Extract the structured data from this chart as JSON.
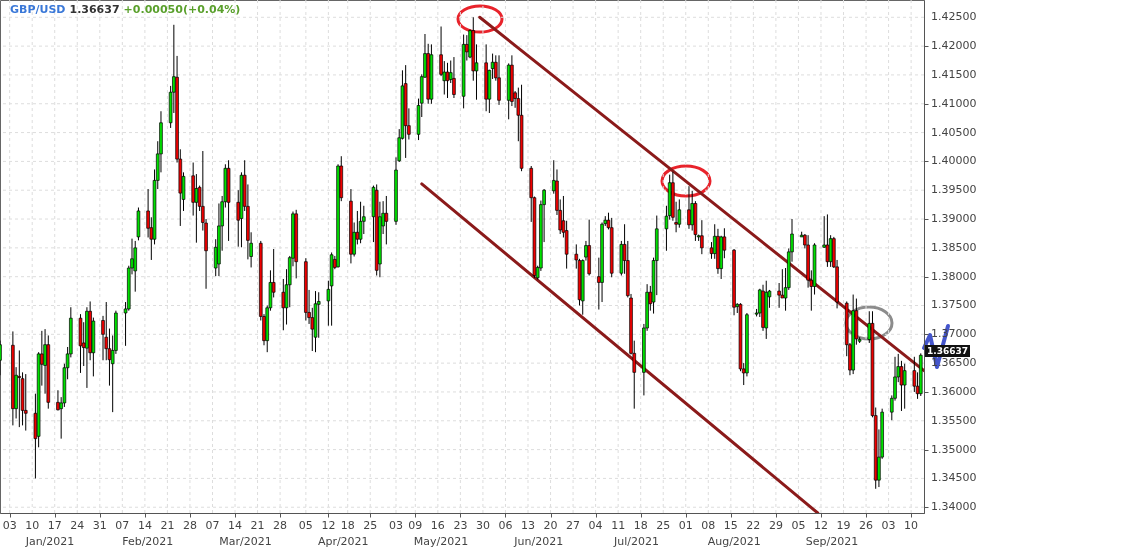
{
  "chart_data": {
    "type": "candlestick",
    "title": "GBP/USD",
    "subtitle": "1.36637",
    "annotations": [
      "+0.00050(+0.04%)",
      "Jan/2021",
      "Feb/2021",
      "Mar/2021",
      "Apr/2021",
      "May/2021",
      "Jun/2021",
      "Jul/2021",
      "Aug/2021",
      "Sep/2021",
      {
        "text": "1.36637",
        "x": "2021-10-13",
        "y": 1.36637
      }
    ],
    "x": [
      "2020-12-31",
      "2021-01-04",
      "2021-01-05",
      "2021-01-06",
      "2021-01-07",
      "2021-01-08",
      "2021-01-11",
      "2021-01-12",
      "2021-01-13",
      "2021-01-14",
      "2021-01-15",
      "2021-01-18",
      "2021-01-19",
      "2021-01-20",
      "2021-01-21",
      "2021-01-22",
      "2021-01-25",
      "2021-01-26",
      "2021-01-27",
      "2021-01-28",
      "2021-01-29",
      "2021-02-01",
      "2021-02-02",
      "2021-02-03",
      "2021-02-04",
      "2021-02-05",
      "2021-02-08",
      "2021-02-09",
      "2021-02-10",
      "2021-02-11",
      "2021-02-12",
      "2021-02-15",
      "2021-02-16",
      "2021-02-17",
      "2021-02-18",
      "2021-02-19",
      "2021-02-22",
      "2021-02-23",
      "2021-02-24",
      "2021-02-25",
      "2021-02-26",
      "2021-03-01",
      "2021-03-02",
      "2021-03-03",
      "2021-03-04",
      "2021-03-05",
      "2021-03-08",
      "2021-03-09",
      "2021-03-10",
      "2021-03-11",
      "2021-03-12",
      "2021-03-15",
      "2021-03-16",
      "2021-03-17",
      "2021-03-18",
      "2021-03-19",
      "2021-03-22",
      "2021-03-23",
      "2021-03-24",
      "2021-03-25",
      "2021-03-26",
      "2021-03-29",
      "2021-03-30",
      "2021-03-31",
      "2021-04-01",
      "2021-04-02",
      "2021-04-05",
      "2021-04-06",
      "2021-04-07",
      "2021-04-08",
      "2021-04-09",
      "2021-04-12",
      "2021-04-13",
      "2021-04-14",
      "2021-04-15",
      "2021-04-16",
      "2021-04-19",
      "2021-04-20",
      "2021-04-21",
      "2021-04-22",
      "2021-04-23",
      "2021-04-26",
      "2021-04-27",
      "2021-04-28",
      "2021-04-29",
      "2021-04-30",
      "2021-05-03",
      "2021-05-04",
      "2021-05-05",
      "2021-05-06",
      "2021-05-07",
      "2021-05-10",
      "2021-05-11",
      "2021-05-12",
      "2021-05-13",
      "2021-05-14",
      "2021-05-17",
      "2021-05-18",
      "2021-05-19",
      "2021-05-20",
      "2021-05-21",
      "2021-05-24",
      "2021-05-25",
      "2021-05-26",
      "2021-05-27",
      "2021-05-28",
      "2021-05-31",
      "2021-06-01",
      "2021-06-02",
      "2021-06-03",
      "2021-06-04",
      "2021-06-07",
      "2021-06-08",
      "2021-06-09",
      "2021-06-10",
      "2021-06-11",
      "2021-06-14",
      "2021-06-15",
      "2021-06-16",
      "2021-06-17",
      "2021-06-18",
      "2021-06-21",
      "2021-06-22",
      "2021-06-23",
      "2021-06-24",
      "2021-06-25",
      "2021-06-28",
      "2021-06-29",
      "2021-06-30",
      "2021-07-01",
      "2021-07-02",
      "2021-07-05",
      "2021-07-06",
      "2021-07-07",
      "2021-07-08",
      "2021-07-09",
      "2021-07-12",
      "2021-07-13",
      "2021-07-14",
      "2021-07-15",
      "2021-07-16",
      "2021-07-19",
      "2021-07-20",
      "2021-07-21",
      "2021-07-22",
      "2021-07-23",
      "2021-07-26",
      "2021-07-27",
      "2021-07-28",
      "2021-07-29",
      "2021-07-30",
      "2021-08-02",
      "2021-08-03",
      "2021-08-04",
      "2021-08-05",
      "2021-08-06",
      "2021-08-09",
      "2021-08-10",
      "2021-08-11",
      "2021-08-12",
      "2021-08-13",
      "2021-08-16",
      "2021-08-17",
      "2021-08-18",
      "2021-08-19",
      "2021-08-20",
      "2021-08-23",
      "2021-08-24",
      "2021-08-25",
      "2021-08-26",
      "2021-08-27",
      "2021-08-30",
      "2021-08-31",
      "2021-09-01",
      "2021-09-02",
      "2021-09-03",
      "2021-09-06",
      "2021-09-07",
      "2021-09-08",
      "2021-09-09",
      "2021-09-10",
      "2021-09-13",
      "2021-09-14",
      "2021-09-15",
      "2021-09-16",
      "2021-09-17",
      "2021-09-20",
      "2021-09-21",
      "2021-09-22",
      "2021-09-23",
      "2021-09-24",
      "2021-09-27",
      "2021-09-28",
      "2021-09-29",
      "2021-09-30",
      "2021-10-01",
      "2021-10-04",
      "2021-10-05",
      "2021-10-06",
      "2021-10-07",
      "2021-10-08",
      "2021-10-11",
      "2021-10-12",
      "2021-10-13"
    ],
    "ohlc": [
      [
        1.3655,
        1.3689,
        1.3629,
        1.3682
      ],
      [
        1.3681,
        1.3705,
        1.3542,
        1.3571
      ],
      [
        1.3571,
        1.3643,
        1.3554,
        1.3629
      ],
      [
        1.3627,
        1.3672,
        1.3539,
        1.3625
      ],
      [
        1.3623,
        1.3634,
        1.3542,
        1.3568
      ],
      [
        1.3568,
        1.3631,
        1.3533,
        1.3563
      ],
      [
        1.3563,
        1.3597,
        1.345,
        1.3519
      ],
      [
        1.3523,
        1.3669,
        1.3504,
        1.3666
      ],
      [
        1.3666,
        1.3706,
        1.3611,
        1.3648
      ],
      [
        1.3646,
        1.3709,
        1.3597,
        1.3682
      ],
      [
        1.3682,
        1.3698,
        1.3571,
        1.3582
      ],
      [
        1.3582,
        1.3603,
        1.3568,
        1.3569
      ],
      [
        1.3571,
        1.3591,
        1.3519,
        1.3581
      ],
      [
        1.3581,
        1.3649,
        1.3574,
        1.3642
      ],
      [
        1.3642,
        1.3678,
        1.3622,
        1.3666
      ],
      [
        1.3666,
        1.3747,
        1.366,
        1.3728
      ],
      [
        1.3728,
        1.3735,
        1.3633,
        1.368
      ],
      [
        1.3685,
        1.3721,
        1.3645,
        1.3677
      ],
      [
        1.3676,
        1.3747,
        1.3607,
        1.374
      ],
      [
        1.374,
        1.3757,
        1.3655,
        1.3668
      ],
      [
        1.3668,
        1.3729,
        1.3627,
        1.3723
      ],
      [
        1.3724,
        1.3732,
        1.3655,
        1.37
      ],
      [
        1.3695,
        1.3756,
        1.3655,
        1.3675
      ],
      [
        1.3675,
        1.371,
        1.3611,
        1.3656
      ],
      [
        1.3649,
        1.3698,
        1.3565,
        1.3672
      ],
      [
        1.3672,
        1.3741,
        1.3666,
        1.3737
      ],
      [
        1.3737,
        1.3756,
        1.368,
        1.3744
      ],
      [
        1.3744,
        1.3819,
        1.3741,
        1.3815
      ],
      [
        1.3815,
        1.3866,
        1.3804,
        1.3831
      ],
      [
        1.381,
        1.3862,
        1.3774,
        1.385
      ],
      [
        1.3869,
        1.392,
        1.3863,
        1.3914
      ],
      [
        1.3914,
        1.3952,
        1.3868,
        1.3884
      ],
      [
        1.3885,
        1.3903,
        1.3829,
        1.3865
      ],
      [
        1.3865,
        1.3986,
        1.3856,
        1.3967
      ],
      [
        1.3967,
        1.4035,
        1.3952,
        1.4013
      ],
      [
        1.4013,
        1.4087,
        1.3981,
        1.4067
      ],
      [
        1.4067,
        1.4131,
        1.4058,
        1.412
      ],
      [
        1.412,
        1.4237,
        1.4084,
        1.4147
      ],
      [
        1.4146,
        1.4183,
        1.3998,
        1.4004
      ],
      [
        1.4004,
        1.4021,
        1.3888,
        1.3945
      ],
      [
        1.3934,
        1.3981,
        1.3914,
        1.3974
      ],
      [
        1.3975,
        1.3998,
        1.3906,
        1.3929
      ],
      [
        1.3929,
        1.3978,
        1.3859,
        1.3953
      ],
      [
        1.3955,
        1.3958,
        1.3914,
        1.3922
      ],
      [
        1.3922,
        1.4018,
        1.388,
        1.3894
      ],
      [
        1.3893,
        1.39,
        1.3779,
        1.3845
      ],
      [
        1.3815,
        1.3865,
        1.3801,
        1.3851
      ],
      [
        1.3822,
        1.3927,
        1.3801,
        1.3888
      ],
      [
        1.3888,
        1.394,
        1.3845,
        1.393
      ],
      [
        1.393,
        1.3995,
        1.392,
        1.3988
      ],
      [
        1.3988,
        1.4002,
        1.3862,
        1.3929
      ],
      [
        1.3929,
        1.395,
        1.3852,
        1.3898
      ],
      [
        1.3901,
        1.3981,
        1.3851,
        1.3976
      ],
      [
        1.3976,
        1.4002,
        1.3914,
        1.3922
      ],
      [
        1.3922,
        1.396,
        1.383,
        1.3863
      ],
      [
        1.3835,
        1.3877,
        1.3816,
        1.3858
      ],
      [
        1.3858,
        1.3862,
        1.3724,
        1.3731
      ],
      [
        1.3731,
        1.3735,
        1.3681,
        1.3689
      ],
      [
        1.3689,
        1.375,
        1.3669,
        1.3746
      ],
      [
        1.3746,
        1.3811,
        1.3741,
        1.379
      ],
      [
        1.379,
        1.3848,
        1.3764,
        1.3773
      ],
      [
        1.3773,
        1.3796,
        1.3707,
        1.3746
      ],
      [
        1.3746,
        1.3813,
        1.3717,
        1.3786
      ],
      [
        1.3786,
        1.3836,
        1.3747,
        1.3833
      ],
      [
        1.3832,
        1.3913,
        1.3818,
        1.3909
      ],
      [
        1.3909,
        1.3916,
        1.3797,
        1.3826
      ],
      [
        1.3826,
        1.3832,
        1.3724,
        1.3738
      ],
      [
        1.3738,
        1.3777,
        1.3718,
        1.3729
      ],
      [
        1.3729,
        1.3746,
        1.3671,
        1.3709
      ],
      [
        1.3695,
        1.3775,
        1.3669,
        1.3753
      ],
      [
        1.3752,
        1.3773,
        1.3694,
        1.3757
      ],
      [
        1.3758,
        1.3793,
        1.3715,
        1.3778
      ],
      [
        1.3784,
        1.3842,
        1.3715,
        1.3838
      ],
      [
        1.383,
        1.3836,
        1.3813,
        1.3816
      ],
      [
        1.3817,
        1.3995,
        1.3816,
        1.3992
      ],
      [
        1.3992,
        1.4009,
        1.3931,
        1.3937
      ],
      [
        1.3931,
        1.3952,
        1.3823,
        1.3839
      ],
      [
        1.3839,
        1.3894,
        1.3835,
        1.3877
      ],
      [
        1.3877,
        1.3914,
        1.3856,
        1.3865
      ],
      [
        1.3865,
        1.393,
        1.3858,
        1.3896
      ],
      [
        1.3896,
        1.3923,
        1.3874,
        1.3904
      ],
      [
        1.3904,
        1.3958,
        1.386,
        1.3955
      ],
      [
        1.395,
        1.396,
        1.3802,
        1.3811
      ],
      [
        1.3822,
        1.393,
        1.3799,
        1.3904
      ],
      [
        1.3888,
        1.3931,
        1.3874,
        1.391
      ],
      [
        1.391,
        1.394,
        1.3856,
        1.3896
      ],
      [
        1.3896,
        1.4007,
        1.389,
        1.3985
      ],
      [
        1.4001,
        1.4056,
        1.3999,
        1.4041
      ],
      [
        1.404,
        1.4158,
        1.4038,
        1.4131
      ],
      [
        1.4135,
        1.4167,
        1.4006,
        1.4062
      ],
      [
        1.4062,
        1.4092,
        1.4038,
        1.4047
      ],
      [
        1.4047,
        1.4109,
        1.4037,
        1.4097
      ],
      [
        1.4101,
        1.4151,
        1.4077,
        1.4147
      ],
      [
        1.4146,
        1.4221,
        1.4145,
        1.4187
      ],
      [
        1.4187,
        1.4204,
        1.41,
        1.4108
      ],
      [
        1.4108,
        1.4203,
        1.41,
        1.4185
      ],
      [
        1.4185,
        1.4234,
        1.4148,
        1.4151
      ],
      [
        1.414,
        1.4174,
        1.4116,
        1.4155
      ],
      [
        1.4155,
        1.4171,
        1.411,
        1.414
      ],
      [
        1.4142,
        1.4175,
        1.4136,
        1.4154
      ],
      [
        1.4144,
        1.4181,
        1.411,
        1.4116
      ],
      [
        1.4113,
        1.422,
        1.4092,
        1.4203
      ],
      [
        1.4203,
        1.4219,
        1.4175,
        1.419
      ],
      [
        1.4181,
        1.4229,
        1.4179,
        1.4227
      ],
      [
        1.4227,
        1.425,
        1.414,
        1.4157
      ],
      [
        1.4157,
        1.4203,
        1.4107,
        1.4171
      ],
      [
        1.4171,
        1.4203,
        1.4087,
        1.4108
      ],
      [
        1.4108,
        1.4159,
        1.4084,
        1.4158
      ],
      [
        1.4161,
        1.4187,
        1.4143,
        1.4172
      ],
      [
        1.4172,
        1.4184,
        1.414,
        1.4145
      ],
      [
        1.4145,
        1.4184,
        1.4098,
        1.4106
      ],
      [
        1.4106,
        1.417,
        1.4073,
        1.4167
      ],
      [
        1.4167,
        1.4184,
        1.4096,
        1.4104
      ],
      [
        1.4119,
        1.4122,
        1.4093,
        1.4109
      ],
      [
        1.4109,
        1.4128,
        1.4035,
        1.408
      ],
      [
        1.408,
        1.4133,
        1.3983,
        1.3988
      ],
      [
        1.3988,
        1.3992,
        1.3895,
        1.3937
      ],
      [
        1.3937,
        1.3939,
        1.3798,
        1.3802
      ],
      [
        1.3798,
        1.3819,
        1.3795,
        1.3816
      ],
      [
        1.3815,
        1.3932,
        1.381,
        1.3925
      ],
      [
        1.3925,
        1.3952,
        1.386,
        1.395
      ],
      [
        1.3949,
        1.4002,
        1.3944,
        1.3967
      ],
      [
        1.3966,
        1.3986,
        1.3907,
        1.3915
      ],
      [
        1.3915,
        1.3934,
        1.3874,
        1.3881
      ],
      [
        1.3897,
        1.394,
        1.3868,
        1.3877
      ],
      [
        1.388,
        1.3897,
        1.3814,
        1.3839
      ],
      [
        1.3839,
        1.3856,
        1.3814,
        1.3829
      ],
      [
        1.3828,
        1.3831,
        1.375,
        1.376
      ],
      [
        1.3758,
        1.383,
        1.3734,
        1.3828
      ],
      [
        1.3834,
        1.3862,
        1.3828,
        1.3854
      ],
      [
        1.3854,
        1.3899,
        1.3802,
        1.3805
      ],
      [
        1.38,
        1.3833,
        1.3743,
        1.379
      ],
      [
        1.379,
        1.3894,
        1.3756,
        1.3891
      ],
      [
        1.3892,
        1.3905,
        1.3888,
        1.3898
      ],
      [
        1.3898,
        1.3911,
        1.3882,
        1.3885
      ],
      [
        1.3885,
        1.3902,
        1.3799,
        1.3806
      ],
      [
        1.3806,
        1.3862,
        1.3802,
        1.3856
      ],
      [
        1.3856,
        1.3891,
        1.3805,
        1.3828
      ],
      [
        1.3828,
        1.3862,
        1.3764,
        1.3767
      ],
      [
        1.3763,
        1.377,
        1.3665,
        1.3667
      ],
      [
        1.3667,
        1.3689,
        1.3571,
        1.3634
      ],
      [
        1.3634,
        1.3718,
        1.3594,
        1.3711
      ],
      [
        1.3711,
        1.3787,
        1.3706,
        1.3773
      ],
      [
        1.3773,
        1.3784,
        1.3741,
        1.3753
      ],
      [
        1.3756,
        1.3833,
        1.3736,
        1.3828
      ],
      [
        1.3828,
        1.3906,
        1.3768,
        1.3883
      ],
      [
        1.3883,
        1.3923,
        1.3845,
        1.3905
      ],
      [
        1.3906,
        1.3977,
        1.3899,
        1.3963
      ],
      [
        1.3963,
        1.3982,
        1.3897,
        1.3903
      ],
      [
        1.3894,
        1.393,
        1.3877,
        1.3891
      ],
      [
        1.3891,
        1.3934,
        1.3885,
        1.3916
      ],
      [
        1.3916,
        1.3957,
        1.3883,
        1.389
      ],
      [
        1.389,
        1.3949,
        1.388,
        1.3927
      ],
      [
        1.3927,
        1.3931,
        1.3862,
        1.3873
      ],
      [
        1.3869,
        1.3873,
        1.3862,
        1.3871
      ],
      [
        1.3871,
        1.3898,
        1.3839,
        1.385
      ],
      [
        1.385,
        1.386,
        1.3831,
        1.384
      ],
      [
        1.384,
        1.3891,
        1.3831,
        1.387
      ],
      [
        1.387,
        1.3883,
        1.3805,
        1.3814
      ],
      [
        1.3814,
        1.3871,
        1.3796,
        1.3869
      ],
      [
        1.3869,
        1.3884,
        1.3832,
        1.3846
      ],
      [
        1.3846,
        1.3848,
        1.3733,
        1.3747
      ],
      [
        1.3748,
        1.3754,
        1.3737,
        1.3752
      ],
      [
        1.3752,
        1.3754,
        1.3636,
        1.364
      ],
      [
        1.364,
        1.365,
        1.3612,
        1.3633
      ],
      [
        1.3633,
        1.3737,
        1.3627,
        1.3734
      ],
      [
        1.3735,
        1.3744,
        1.3731,
        1.3737
      ],
      [
        1.3737,
        1.3779,
        1.373,
        1.3777
      ],
      [
        1.3775,
        1.3786,
        1.3706,
        1.3712
      ],
      [
        1.3711,
        1.3793,
        1.3692,
        1.3773
      ],
      [
        1.3765,
        1.3777,
        1.3746,
        1.3775
      ],
      [
        1.3775,
        1.3789,
        1.3746,
        1.3768
      ],
      [
        1.3768,
        1.3813,
        1.3763,
        1.3763
      ],
      [
        1.3763,
        1.3815,
        1.3741,
        1.3781
      ],
      [
        1.3781,
        1.3849,
        1.3777,
        1.3843
      ],
      [
        1.3843,
        1.39,
        1.3826,
        1.3874
      ],
      [
        1.3869,
        1.3878,
        1.3869,
        1.3872
      ],
      [
        1.3872,
        1.3874,
        1.3849,
        1.3855
      ],
      [
        1.3855,
        1.3872,
        1.3781,
        1.3794
      ],
      [
        1.3794,
        1.3811,
        1.3741,
        1.3783
      ],
      [
        1.3783,
        1.3858,
        1.3769,
        1.3855
      ],
      [
        1.3851,
        1.3905,
        1.385,
        1.3855
      ],
      [
        1.3855,
        1.3908,
        1.3817,
        1.3826
      ],
      [
        1.3826,
        1.3872,
        1.3817,
        1.3866
      ],
      [
        1.3866,
        1.3869,
        1.3815,
        1.3817
      ],
      [
        1.3817,
        1.3829,
        1.3745,
        1.3756
      ],
      [
        1.3754,
        1.3757,
        1.3662,
        1.3682
      ],
      [
        1.3682,
        1.3685,
        1.3629,
        1.3638
      ],
      [
        1.3638,
        1.3769,
        1.3631,
        1.3741
      ],
      [
        1.3741,
        1.3762,
        1.3682,
        1.3692
      ],
      [
        1.3688,
        1.3695,
        1.3685,
        1.3691
      ],
      [
        1.3691,
        1.374,
        1.3685,
        1.3719
      ],
      [
        1.3719,
        1.374,
        1.3556,
        1.3559
      ],
      [
        1.3559,
        1.3573,
        1.3432,
        1.3447
      ],
      [
        1.3447,
        1.3535,
        1.3435,
        1.3487
      ],
      [
        1.3487,
        1.3571,
        1.3484,
        1.3565
      ],
      [
        1.3565,
        1.3594,
        1.3551,
        1.3589
      ],
      [
        1.3589,
        1.3661,
        1.3585,
        1.3626
      ],
      [
        1.3626,
        1.3666,
        1.3617,
        1.3644
      ],
      [
        1.3644,
        1.3654,
        1.3567,
        1.3612
      ],
      [
        1.3612,
        1.3649,
        1.3571,
        1.3637
      ],
      [
        1.3637,
        1.3661,
        1.36,
        1.361
      ],
      [
        1.361,
        1.3634,
        1.3588,
        1.3597
      ],
      [
        1.3597,
        1.3667,
        1.3593,
        1.36637
      ]
    ],
    "colors": [
      "#00e000",
      "#ee0000",
      "#00e000",
      "#ee0000",
      "#ee0000",
      "#ee0000",
      "#ee0000",
      "#00e000",
      "#ee0000",
      "#00e000",
      "#ee0000",
      "#ee0000",
      "#00e000",
      "#00e000",
      "#00e000",
      "#00e000",
      "#ee0000",
      "#ee0000",
      "#00e000",
      "#ee0000",
      "#00e000",
      "#ee0000",
      "#ee0000",
      "#ee0000",
      "#00e000",
      "#00e000",
      "#00e000",
      "#00e000",
      "#00e000",
      "#00e000",
      "#00e000",
      "#ee0000",
      "#ee0000",
      "#00e000",
      "#00e000",
      "#00e000",
      "#00e000",
      "#00e000",
      "#ee0000",
      "#ee0000",
      "#00e000",
      "#ee0000",
      "#00e000",
      "#ee0000",
      "#ee0000",
      "#ee0000",
      "#00e000",
      "#00e000",
      "#00e000",
      "#00e000",
      "#ee0000",
      "#ee0000",
      "#00e000",
      "#ee0000",
      "#ee0000",
      "#00e000",
      "#ee0000",
      "#ee0000",
      "#00e000",
      "#00e000",
      "#ee0000",
      "#ee0000",
      "#00e000",
      "#00e000",
      "#00e000",
      "#ee0000",
      "#ee0000",
      "#ee0000",
      "#ee0000",
      "#00e000",
      "#00e000",
      "#00e000",
      "#00e000",
      "#ee0000",
      "#00e000",
      "#ee0000",
      "#ee0000",
      "#00e000",
      "#ee0000",
      "#00e000",
      "#00e000",
      "#00e000",
      "#ee0000",
      "#00e000",
      "#00e000",
      "#ee0000",
      "#00e000",
      "#00e000",
      "#00e000",
      "#ee0000",
      "#ee0000",
      "#00e000",
      "#00e000",
      "#00e000",
      "#ee0000",
      "#00e000",
      "#ee0000",
      "#00e000",
      "#ee0000",
      "#00e000",
      "#ee0000",
      "#00e000",
      "#ee0000",
      "#00e000",
      "#ee0000",
      "#00e000",
      "#ee0000",
      "#00e000",
      "#00e000",
      "#ee0000",
      "#ee0000",
      "#00e000",
      "#ee0000",
      "#ee0000",
      "#ee0000",
      "#ee0000",
      "#ee0000",
      "#ee0000",
      "#00e000",
      "#00e000",
      "#00e000",
      "#00e000",
      "#ee0000",
      "#ee0000",
      "#ee0000",
      "#ee0000",
      "#ee0000",
      "#ee0000",
      "#00e000",
      "#00e000",
      "#ee0000",
      "#ee0000",
      "#00e000",
      "#00e000",
      "#ee0000",
      "#ee0000",
      "#00e000",
      "#ee0000",
      "#ee0000",
      "#ee0000",
      "#ee0000",
      "#00e000",
      "#00e000",
      "#ee0000",
      "#00e000",
      "#00e000",
      "#00e000",
      "#00e000",
      "#ee0000",
      "#ee0000",
      "#00e000",
      "#ee0000",
      "#00e000",
      "#ee0000",
      "#00e000",
      "#ee0000",
      "#ee0000",
      "#00e000",
      "#ee0000",
      "#00e000",
      "#ee0000",
      "#ee0000",
      "#00e000",
      "#ee0000",
      "#ee0000",
      "#00e000",
      "#00e000",
      "#00e000",
      "#ee0000",
      "#00e000",
      "#00e000",
      "#ee0000",
      "#ee0000",
      "#00e000",
      "#00e000",
      "#00e000",
      "#00e000",
      "#ee0000",
      "#ee0000",
      "#ee0000",
      "#00e000",
      "#00e000",
      "#ee0000",
      "#00e000",
      "#ee0000",
      "#ee0000",
      "#ee0000",
      "#ee0000",
      "#00e000",
      "#ee0000",
      "#00e000",
      "#00e000",
      "#ee0000",
      "#ee0000",
      "#00e000",
      "#00e000",
      "#00e000",
      "#00e000",
      "#00e000",
      "#ee0000",
      "#00e000",
      "#ee0000",
      "#ee0000",
      "#00e000"
    ],
    "series": [
      {
        "type": "line",
        "x": [
          "2021-05-29",
          "2021-10-14"
        ],
        "values": [
          1.425,
          1.3637
        ],
        "color": "#8b1a1a"
      },
      {
        "type": "line",
        "x": [
          "2021-05-11",
          "2021-09-11"
        ],
        "values": [
          1.3961,
          1.339
        ],
        "color": "#8b1a1a"
      }
    ],
    "xlim": [
      "2020-12-31",
      "2021-10-14"
    ],
    "xticks": [
      {
        "value": "2021-01-03",
        "label": "03"
      },
      {
        "value": "2021-01-10",
        "label": "10"
      },
      {
        "value": "2021-01-17",
        "label": "17"
      },
      {
        "value": "2021-01-24",
        "label": "24"
      },
      {
        "value": "2021-01-31",
        "label": "31"
      },
      {
        "value": "2021-02-07",
        "label": "07"
      },
      {
        "value": "2021-02-14",
        "label": "14"
      },
      {
        "value": "2021-02-21",
        "label": "21"
      },
      {
        "value": "2021-02-28",
        "label": "28"
      },
      {
        "value": "2021-03-07",
        "label": "07"
      },
      {
        "value": "2021-03-14",
        "label": "14"
      },
      {
        "value": "2021-03-21",
        "label": "21"
      },
      {
        "value": "2021-03-28",
        "label": "28"
      },
      {
        "value": "2021-04-05",
        "label": "05"
      },
      {
        "value": "2021-04-12",
        "label": "12"
      },
      {
        "value": "2021-04-18",
        "label": "18"
      },
      {
        "value": "2021-04-25",
        "label": "25"
      },
      {
        "value": "2021-05-03",
        "label": "03"
      },
      {
        "value": "2021-05-09",
        "label": "09"
      },
      {
        "value": "2021-05-16",
        "label": "16"
      },
      {
        "value": "2021-05-23",
        "label": "23"
      },
      {
        "value": "2021-05-30",
        "label": "30"
      },
      {
        "value": "2021-06-06",
        "label": "06"
      },
      {
        "value": "2021-06-13",
        "label": "13"
      },
      {
        "value": "2021-06-20",
        "label": "20"
      },
      {
        "value": "2021-06-27",
        "label": "27"
      },
      {
        "value": "2021-07-04",
        "label": "04"
      },
      {
        "value": "2021-07-11",
        "label": "11"
      },
      {
        "value": "2021-07-18",
        "label": "18"
      },
      {
        "value": "2021-07-25",
        "label": "25"
      },
      {
        "value": "2021-08-01",
        "label": "01"
      },
      {
        "value": "2021-08-08",
        "label": "08"
      },
      {
        "value": "2021-08-15",
        "label": "15"
      },
      {
        "value": "2021-08-22",
        "label": "22"
      },
      {
        "value": "2021-08-29",
        "label": "29"
      },
      {
        "value": "2021-09-05",
        "label": "05"
      },
      {
        "value": "2021-09-12",
        "label": "12"
      },
      {
        "value": "2021-09-19",
        "label": "19"
      },
      {
        "value": "2021-09-26",
        "label": "26"
      },
      {
        "value": "2021-10-03",
        "label": "03"
      },
      {
        "value": "2021-10-10",
        "label": "10"
      }
    ],
    "ylim": [
      1.339,
      1.428
    ],
    "yticks": [
      {
        "value": 1.34,
        "label": "1.34000"
      },
      {
        "value": 1.345,
        "label": "1.34500"
      },
      {
        "value": 1.35,
        "label": "1.35000"
      },
      {
        "value": 1.355,
        "label": "1.35500"
      },
      {
        "value": 1.36,
        "label": "1.36000"
      },
      {
        "value": 1.365,
        "label": "1.36500"
      },
      {
        "value": 1.37,
        "label": "1.37000"
      },
      {
        "value": 1.375,
        "label": "1.37500"
      },
      {
        "value": 1.38,
        "label": "1.38000"
      },
      {
        "value": 1.385,
        "label": "1.38500"
      },
      {
        "value": 1.39,
        "label": "1.39000"
      },
      {
        "value": 1.395,
        "label": "1.39500"
      },
      {
        "value": 1.4,
        "label": "1.40000"
      },
      {
        "value": 1.405,
        "label": "1.40500"
      },
      {
        "value": 1.41,
        "label": "1.41000"
      },
      {
        "value": 1.415,
        "label": "1.41500"
      },
      {
        "value": 1.42,
        "label": "1.42000"
      },
      {
        "value": 1.425,
        "label": "1.42500"
      }
    ],
    "grid": true
  }
}
